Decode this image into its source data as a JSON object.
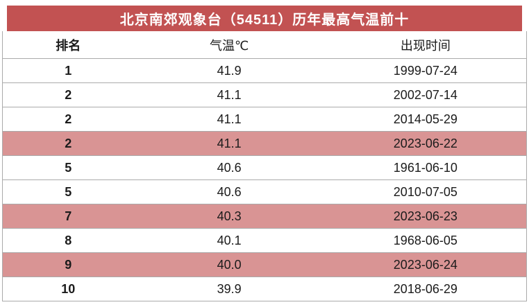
{
  "banner": {
    "title": "北京南郊观象台（54511）历年最高气温前十"
  },
  "table": {
    "headers": {
      "rank": "排名",
      "temp": "气温℃",
      "date": "出现时间"
    },
    "rows": [
      {
        "rank": "1",
        "temp": "41.9",
        "date": "1999-07-24",
        "highlight": false
      },
      {
        "rank": "2",
        "temp": "41.1",
        "date": "2002-07-14",
        "highlight": false
      },
      {
        "rank": "2",
        "temp": "41.1",
        "date": "2014-05-29",
        "highlight": false
      },
      {
        "rank": "2",
        "temp": "41.1",
        "date": "2023-06-22",
        "highlight": true
      },
      {
        "rank": "5",
        "temp": "40.6",
        "date": "1961-06-10",
        "highlight": false
      },
      {
        "rank": "5",
        "temp": "40.6",
        "date": "2010-07-05",
        "highlight": false
      },
      {
        "rank": "7",
        "temp": "40.3",
        "date": "2023-06-23",
        "highlight": true
      },
      {
        "rank": "8",
        "temp": "40.1",
        "date": "1968-06-05",
        "highlight": false
      },
      {
        "rank": "9",
        "temp": "40.0",
        "date": "2023-06-24",
        "highlight": true
      },
      {
        "rank": "10",
        "temp": "39.9",
        "date": "2018-06-29",
        "highlight": false
      }
    ]
  },
  "colors": {
    "banner_red": "#c25252",
    "banner_text": "#ffffff",
    "highlight_pink": "#d99494",
    "row_text": "#1b1b1b",
    "grid_line": "#aaaaaa"
  },
  "chart_data": {
    "type": "table",
    "title": "北京南郊观象台（54511）历年最高气温前十",
    "columns": [
      "排名",
      "气温℃",
      "出现时间"
    ],
    "rows": [
      [
        "1",
        41.9,
        "1999-07-24"
      ],
      [
        "2",
        41.1,
        "2002-07-14"
      ],
      [
        "2",
        41.1,
        "2014-05-29"
      ],
      [
        "2",
        41.1,
        "2023-06-22"
      ],
      [
        "5",
        40.6,
        "1961-06-10"
      ],
      [
        "5",
        40.6,
        "2010-07-05"
      ],
      [
        "7",
        40.3,
        "2023-06-23"
      ],
      [
        "8",
        40.1,
        "1968-06-05"
      ],
      [
        "9",
        40.0,
        "2023-06-24"
      ],
      [
        "10",
        39.9,
        "2018-06-29"
      ]
    ],
    "highlighted_row_indices": [
      3,
      6,
      8
    ],
    "highlight_meaning": "2023 dates highlighted in pink"
  }
}
